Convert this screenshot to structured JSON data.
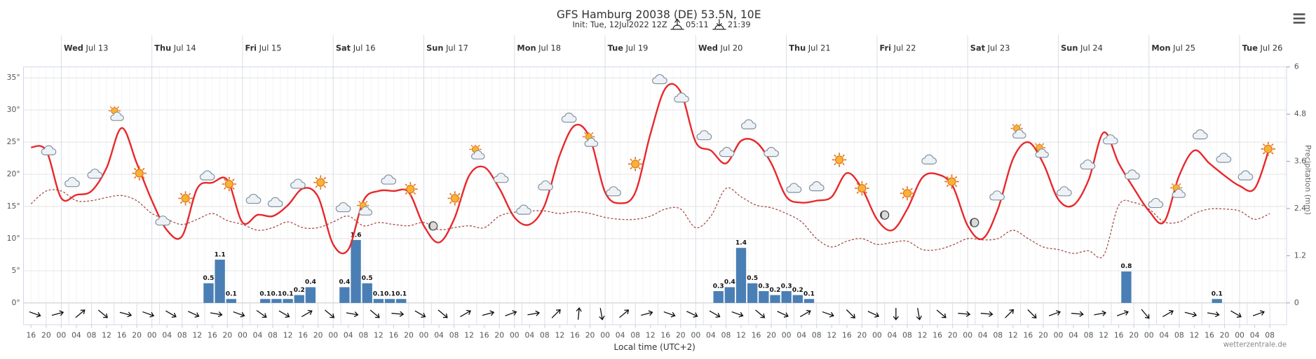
{
  "chart_data": {
    "type": "meteogram",
    "title": "GFS Hamburg 20038 (DE) 53.5N, 10E",
    "subtitle": {
      "init": "Init: Tue, 12Jul2022 12Z",
      "sunrise": "05:11",
      "sunset": "21:39"
    },
    "x_label": "Local time (UTC+2)",
    "source": "wetterzentrale.de",
    "y2_label": "Precipitation (mm)",
    "days": [
      {
        "weekday": "Wed",
        "date": "Jul 13"
      },
      {
        "weekday": "Thu",
        "date": "Jul 14"
      },
      {
        "weekday": "Fri",
        "date": "Jul 15"
      },
      {
        "weekday": "Sat",
        "date": "Jul 16"
      },
      {
        "weekday": "Sun",
        "date": "Jul 17"
      },
      {
        "weekday": "Mon",
        "date": "Jul 18"
      },
      {
        "weekday": "Tue",
        "date": "Jul 19"
      },
      {
        "weekday": "Wed",
        "date": "Jul 20"
      },
      {
        "weekday": "Thu",
        "date": "Jul 21"
      },
      {
        "weekday": "Fri",
        "date": "Jul 22"
      },
      {
        "weekday": "Sat",
        "date": "Jul 23"
      },
      {
        "weekday": "Sun",
        "date": "Jul 24"
      },
      {
        "weekday": "Mon",
        "date": "Jul 25"
      },
      {
        "weekday": "Tue",
        "date": "Jul 26"
      }
    ],
    "categories": [
      "16",
      "20",
      "00",
      "04",
      "08",
      "12",
      "16",
      "20",
      "00",
      "04",
      "08",
      "12",
      "16",
      "20",
      "00",
      "04",
      "08",
      "12",
      "16",
      "20",
      "00",
      "04",
      "08",
      "12",
      "16",
      "20",
      "00",
      "04",
      "08",
      "12",
      "16",
      "20",
      "00",
      "04",
      "08",
      "12",
      "16",
      "20",
      "00",
      "04",
      "08",
      "12",
      "16",
      "20",
      "00",
      "04",
      "08",
      "12",
      "16",
      "20",
      "00",
      "04",
      "08",
      "12",
      "16",
      "20",
      "00",
      "04",
      "08",
      "12",
      "16",
      "20",
      "00",
      "04",
      "08",
      "12",
      "16",
      "20",
      "00",
      "04",
      "08",
      "12",
      "16",
      "20",
      "00",
      "04",
      "08",
      "12",
      "16",
      "20",
      "00",
      "04",
      "08"
    ],
    "ylim": [
      0,
      35
    ],
    "yticks": [
      {
        "value": 0,
        "label": "0°"
      },
      {
        "value": 5,
        "label": "5°"
      },
      {
        "value": 10,
        "label": "10°"
      },
      {
        "value": 15,
        "label": "15°"
      },
      {
        "value": 20,
        "label": "20°"
      },
      {
        "value": 25,
        "label": "25°"
      },
      {
        "value": 30,
        "label": "30°"
      },
      {
        "value": 35,
        "label": "35°"
      }
    ],
    "y2lim": [
      0,
      6
    ],
    "y2ticks": [
      0,
      1.2,
      2.4,
      3.6,
      4.8,
      6
    ],
    "grid": true,
    "series": [
      {
        "color": "#e8282b",
        "style": "solid",
        "values": [
          24.2,
          23.7,
          16.3,
          16.8,
          17.4,
          21,
          27.2,
          21.7,
          15.9,
          11.3,
          10.4,
          17.8,
          18.7,
          19.1,
          12.5,
          13.7,
          13.5,
          15.2,
          17.8,
          16.5,
          9.1,
          8.3,
          15.9,
          17.4,
          17.4,
          17.2,
          12,
          9.4,
          13,
          19.8,
          21.1,
          17.8,
          13.3,
          12.2,
          15.2,
          23,
          27.6,
          25.6,
          17.2,
          15.5,
          17.2,
          26.3,
          33.4,
          32.8,
          25,
          23.7,
          21.7,
          25.2,
          25,
          21.7,
          16.5,
          15.6,
          15.9,
          16.5,
          20.2,
          17.8,
          13,
          11.3,
          14.6,
          19.5,
          20,
          18.2,
          12,
          10,
          14.6,
          22.4,
          25,
          21.7,
          16.1,
          15.2,
          19.1,
          26.5,
          21.7,
          17.8,
          14.3,
          12.6,
          19.8,
          23.7,
          21.7,
          19.8,
          18.2,
          17.8,
          24.3
        ]
      },
      {
        "color": "#a0413a",
        "style": "dashed",
        "values": [
          15.4,
          17.4,
          17.4,
          15.9,
          15.9,
          16.4,
          16.7,
          15.9,
          13.9,
          13,
          12.2,
          13,
          13.9,
          12.8,
          12.2,
          11.3,
          11.7,
          12.6,
          11.7,
          11.7,
          12.6,
          13.5,
          12,
          12.5,
          12.2,
          12,
          12.5,
          11.4,
          11.7,
          12,
          11.7,
          13.5,
          14.1,
          14.3,
          14.3,
          13.9,
          14.2,
          13.9,
          13.3,
          13,
          13,
          13.5,
          14.6,
          14.6,
          11.7,
          13.5,
          17.8,
          16.5,
          15.2,
          14.8,
          13.9,
          12.6,
          10,
          8.7,
          9.6,
          10,
          9.1,
          9.4,
          9.6,
          8.3,
          8.3,
          9,
          10,
          9.8,
          10,
          11.3,
          10,
          8.7,
          8.3,
          7.7,
          8.1,
          7.4,
          15.2,
          15.6,
          14.6,
          12.6,
          12.6,
          13.9,
          14.6,
          14.6,
          14.3,
          13,
          13.9
        ]
      }
    ],
    "precipitation": {
      "axis": "y2",
      "color": "#4a7fb5",
      "x": [
        "Jul 14 15",
        "Jul 14 18",
        "Jul 14 21",
        "Jul 15 06",
        "Jul 15 09",
        "Jul 15 12",
        "Jul 15 15",
        "Jul 15 18",
        "Jul 16 03",
        "Jul 16 06",
        "Jul 16 09",
        "Jul 16 12",
        "Jul 16 15",
        "Jul 16 18",
        "Jul 20 06",
        "Jul 20 09",
        "Jul 20 12",
        "Jul 20 15",
        "Jul 20 18",
        "Jul 20 21",
        "Jul 21 00",
        "Jul 21 03",
        "Jul 21 06",
        "Jul 24 18",
        "Jul 25 18"
      ],
      "values": [
        0.5,
        1.1,
        0.1,
        0.1,
        0.1,
        0.1,
        0.2,
        0.4,
        0.4,
        1.6,
        0.5,
        0.1,
        0.1,
        0.1,
        0.3,
        0.4,
        1.4,
        0.5,
        0.3,
        0.2,
        0.3,
        0.2,
        0.1,
        0.8,
        0.1
      ]
    },
    "wind_direction": [
      290,
      255,
      230,
      310,
      285,
      290,
      300,
      295,
      280,
      290,
      305,
      300,
      240,
      310,
      280,
      310,
      275,
      300,
      310,
      240,
      255,
      250,
      260,
      225,
      185,
      350,
      230,
      255,
      290,
      295,
      300,
      290,
      310,
      295,
      240,
      290,
      315,
      295,
      0,
      350,
      310,
      275,
      275,
      225,
      315,
      250,
      275,
      260,
      250,
      320,
      240,
      285,
      280,
      300,
      250
    ]
  }
}
